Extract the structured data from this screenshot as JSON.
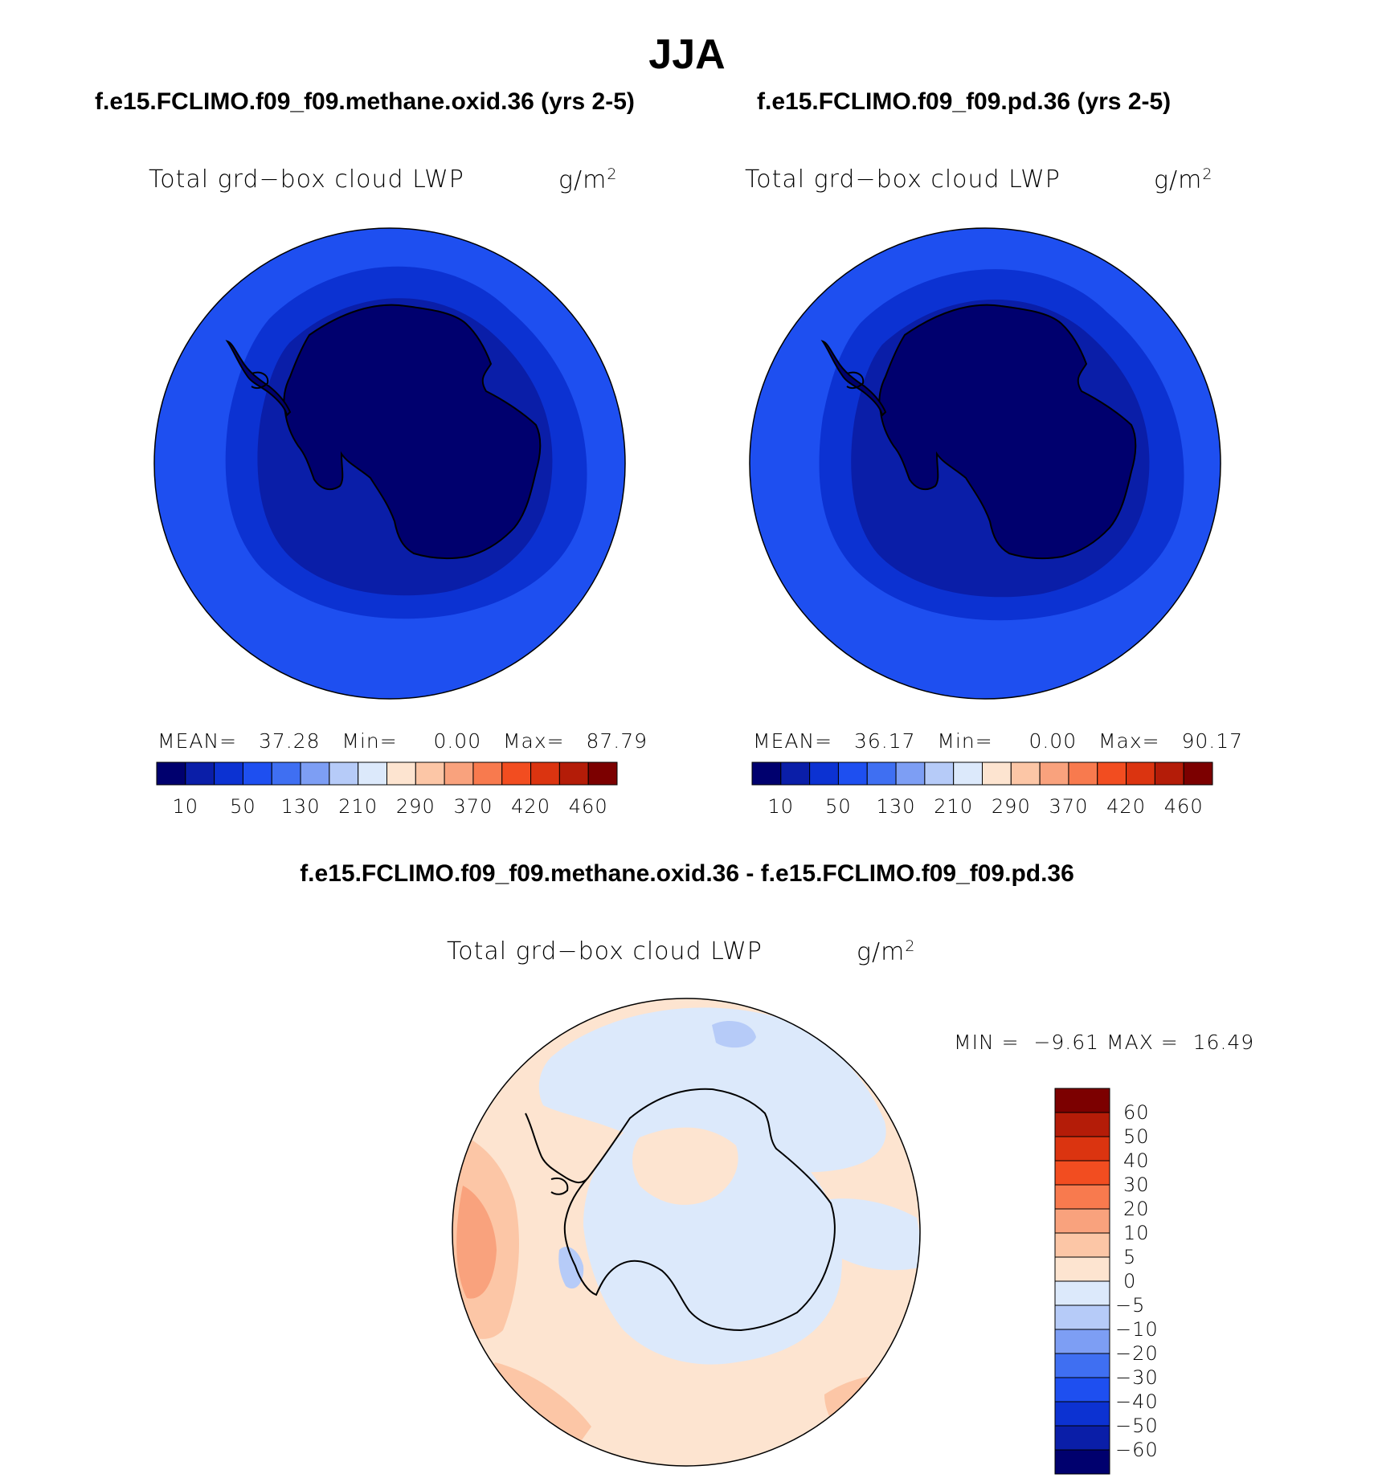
{
  "season": "JJA",
  "panels": [
    {
      "case_title": "f.e15.FCLIMO.f09_f09.methane.oxid.36 (yrs 2-5)",
      "variable": "Total grd−box cloud LWP",
      "units_base": "g/m",
      "units_exp": "2",
      "stats": [
        {
          "label": "MEAN=",
          "value": "37.28"
        },
        {
          "label": "Min=",
          "value": "0.00"
        },
        {
          "label": "Max=",
          "value": "87.79"
        }
      ]
    },
    {
      "case_title": "f.e15.FCLIMO.f09_f09.pd.36 (yrs 2-5)",
      "variable": "Total grd−box cloud LWP",
      "units_base": "g/m",
      "units_exp": "2",
      "stats": [
        {
          "label": "MEAN=",
          "value": "36.17"
        },
        {
          "label": "Min=",
          "value": "0.00"
        },
        {
          "label": "Max=",
          "value": "90.17"
        }
      ]
    }
  ],
  "diff_panel": {
    "case_title": "f.e15.FCLIMO.f09_f09.methane.oxid.36 - f.e15.FCLIMO.f09_f09.pd.36",
    "variable": "Total grd−box cloud LWP",
    "units_base": "g/m",
    "units_exp": "2",
    "min_label": "MIN =",
    "min_value": "−9.61",
    "max_label": "MAX =",
    "max_value": "16.49"
  },
  "colorbar_top": {
    "colors": [
      "#00006e",
      "#0a1ea8",
      "#0c32d2",
      "#1e4ff0",
      "#3f6ff2",
      "#7d9ef4",
      "#b6cbf8",
      "#dce9fb",
      "#fde4d0",
      "#fcc6a6",
      "#f9a27d",
      "#f87a4e",
      "#f24d20",
      "#db3410",
      "#b41c08",
      "#7c0000"
    ],
    "ticks": [
      "10",
      "50",
      "130",
      "210",
      "290",
      "370",
      "420",
      "460"
    ]
  },
  "colorbar_diff": {
    "colors_top_to_bottom": [
      "#7c0000",
      "#b41c08",
      "#db3410",
      "#f24d20",
      "#f87a4e",
      "#f9a27d",
      "#fcc6a6",
      "#fde4d0",
      "#dce9fb",
      "#b6cbf8",
      "#7d9ef4",
      "#3f6ff2",
      "#1e4ff0",
      "#0c32d2",
      "#0a1ea8",
      "#00006e"
    ],
    "ticks": [
      "60",
      "50",
      "40",
      "30",
      "20",
      "10",
      "5",
      "0",
      "−5",
      "−10",
      "−20",
      "−30",
      "−40",
      "−50",
      "−60"
    ]
  },
  "map_colors": {
    "ocean_outer": "#1e4ff0",
    "ring_mid": "#0c32d2",
    "ring_inner": "#0a1ea8",
    "continent": "#00006e",
    "diff_pos_light": "#fde4d0",
    "diff_pos_mid": "#fcc6a6",
    "diff_pos_strong": "#f9a27d",
    "diff_neg_light": "#dce9fb",
    "diff_neg_mid": "#b6cbf8",
    "diff_neg_strong": "#7d9ef4"
  }
}
